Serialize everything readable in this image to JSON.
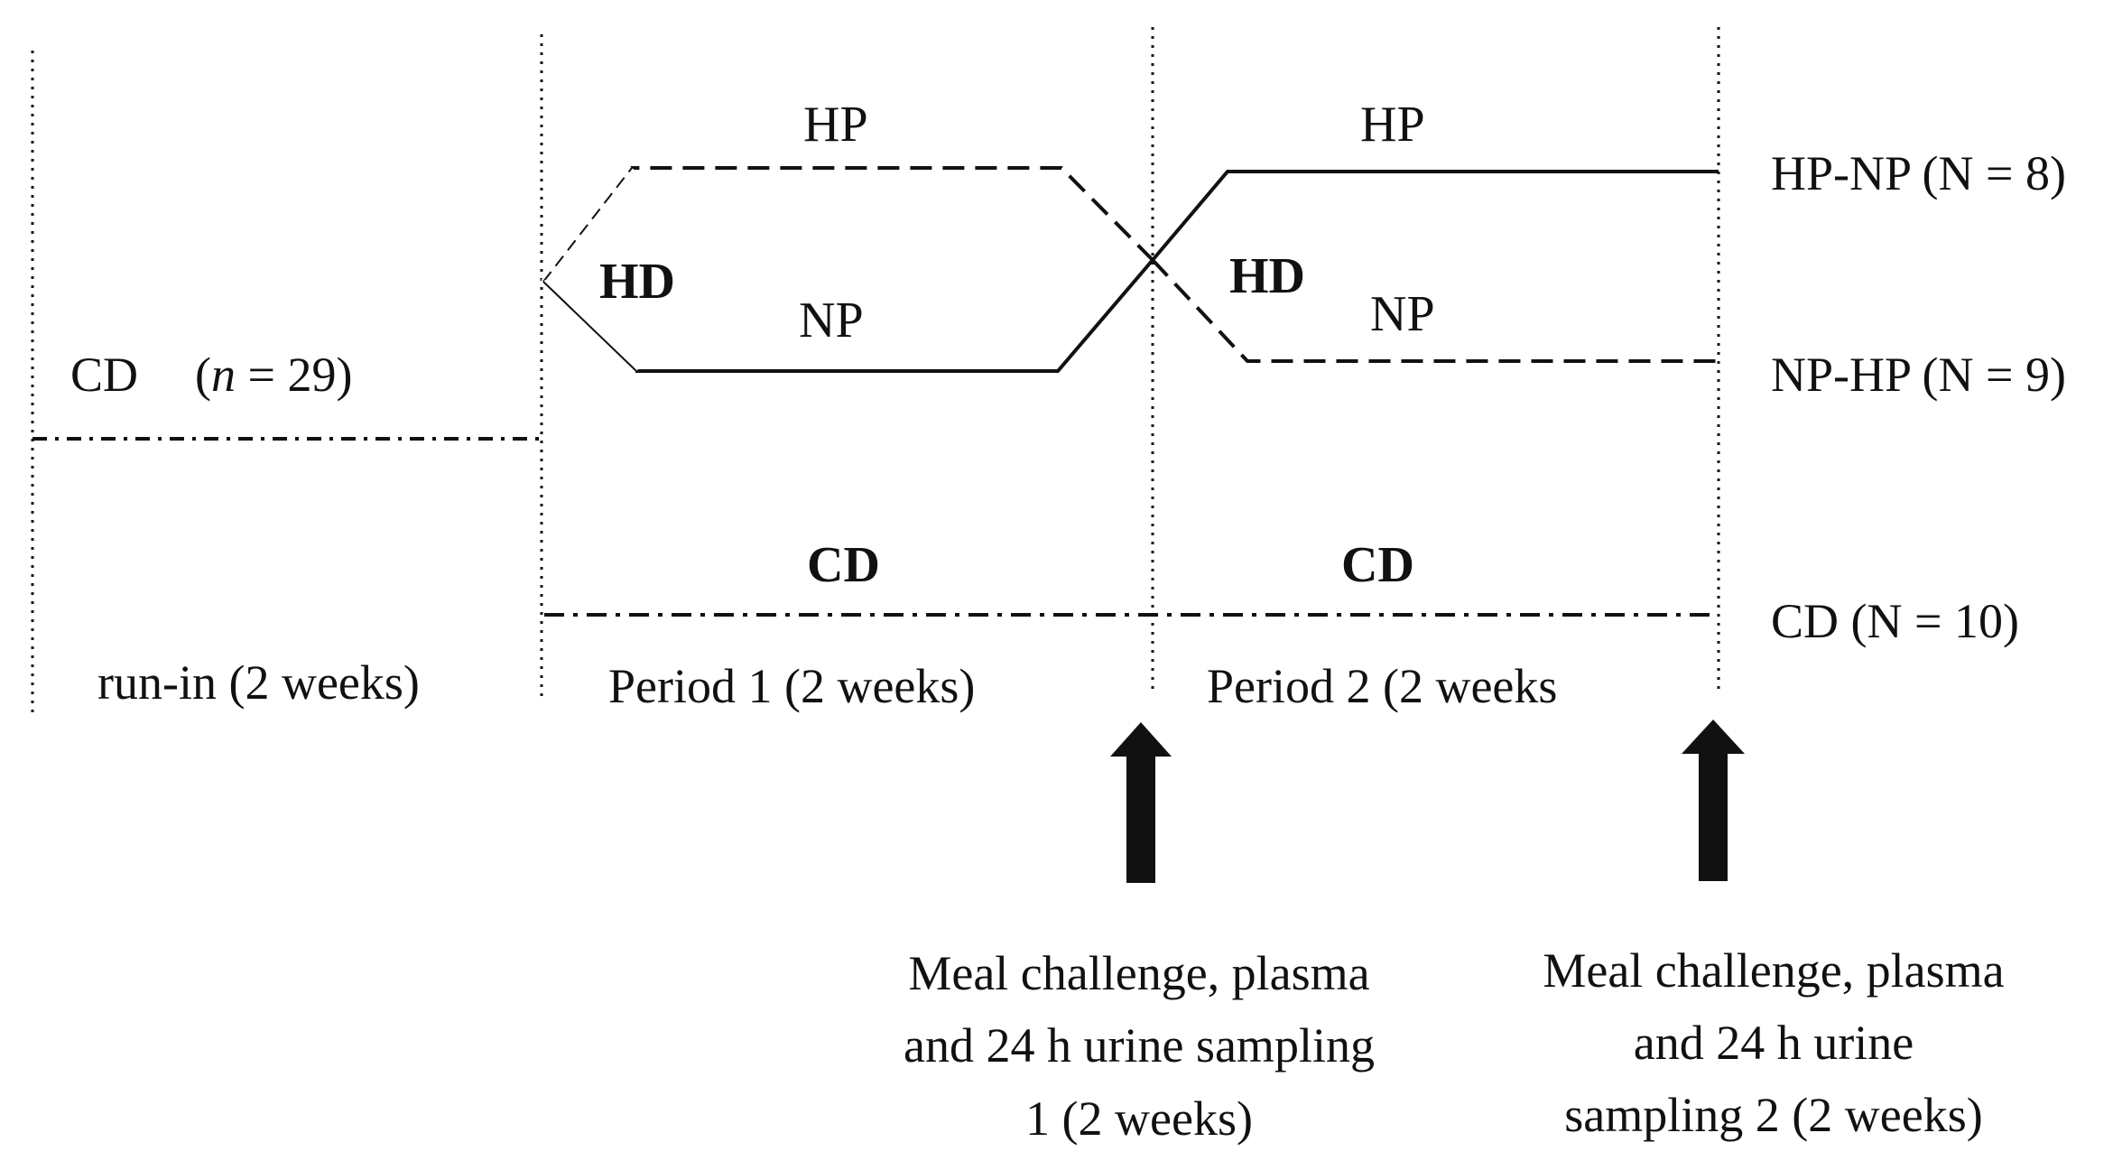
{
  "colors": {
    "line": "#111111",
    "background": "#ffffff"
  },
  "run_in": {
    "group_label": "CD",
    "n_prefix": "(",
    "n_var": "n",
    "n_suffix": " = 29)",
    "period_label": "run-in (2 weeks)"
  },
  "period1": {
    "hp_label": "HP",
    "hd_label": "HD",
    "np_label": "NP",
    "cd_label": "CD",
    "period_label": "Period 1 (2 weeks)"
  },
  "period2": {
    "hp_label": "HP",
    "hd_label": "HD",
    "np_label": "NP",
    "cd_label": "CD",
    "period_label": "Period 2 (2 weeks"
  },
  "outcomes": {
    "hp_np": "HP-NP (N = 8)",
    "np_hp": "NP-HP (N = 9)",
    "cd": "CD (N = 10)"
  },
  "sampling1": {
    "line1": "Meal challenge, plasma",
    "line2": "and 24 h urine sampling",
    "line3": "1 (2 weeks)",
    "arrow_icon": "up-arrow-icon"
  },
  "sampling2": {
    "line1": "Meal challenge, plasma",
    "line2": "and 24 h urine",
    "line3": "sampling 2 (2 weeks)",
    "arrow_icon": "up-arrow-icon"
  }
}
